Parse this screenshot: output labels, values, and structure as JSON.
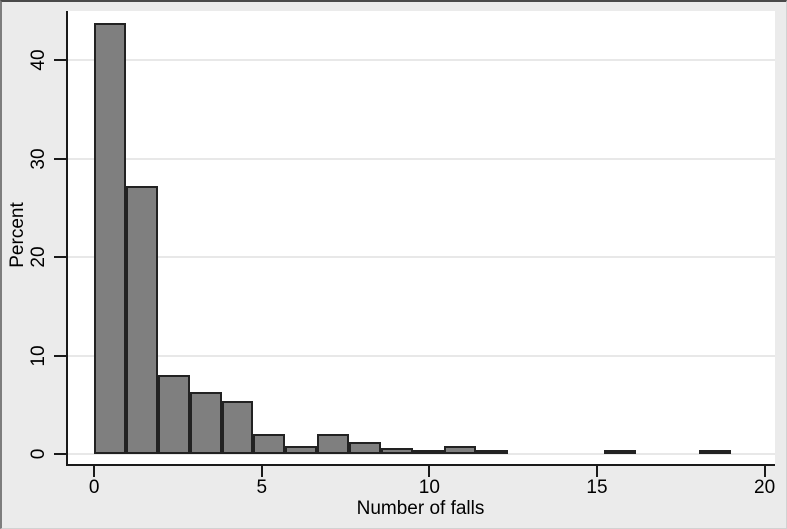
{
  "chart_data": {
    "type": "bar",
    "title": "",
    "xlabel": "Number of falls",
    "ylabel": "Percent",
    "x_ticks": [
      0,
      5,
      10,
      15,
      20
    ],
    "y_ticks": [
      0,
      10,
      20,
      30,
      40
    ],
    "xlim": [
      -0.78,
      20.31
    ],
    "ylim": [
      -1.0,
      45.0
    ],
    "bin_width": 0.95,
    "grid": "horizontal-light",
    "legend": "none",
    "bars": [
      {
        "x_start": 0.0,
        "percent": 43.8
      },
      {
        "x_start": 0.95,
        "percent": 27.2
      },
      {
        "x_start": 1.9,
        "percent": 8.0
      },
      {
        "x_start": 2.85,
        "percent": 6.3
      },
      {
        "x_start": 3.8,
        "percent": 5.4
      },
      {
        "x_start": 4.75,
        "percent": 2.0
      },
      {
        "x_start": 5.7,
        "percent": 0.8
      },
      {
        "x_start": 6.65,
        "percent": 2.0
      },
      {
        "x_start": 7.6,
        "percent": 1.2
      },
      {
        "x_start": 8.55,
        "percent": 0.6
      },
      {
        "x_start": 9.5,
        "percent": 0.25
      },
      {
        "x_start": 10.45,
        "percent": 0.8
      },
      {
        "x_start": 11.4,
        "percent": 0.25
      },
      {
        "x_start": 15.2,
        "percent": 0.3
      },
      {
        "x_start": 18.05,
        "percent": 0.3
      }
    ]
  },
  "colors": {
    "figure_background": "#ebebeb",
    "plot_background": "#ffffff",
    "bar_fill": "#7f7f7f",
    "bar_outline": "#222222",
    "axis_line": "#1a1a1a",
    "gridline": "#e8e8e8",
    "text": "#000000"
  }
}
